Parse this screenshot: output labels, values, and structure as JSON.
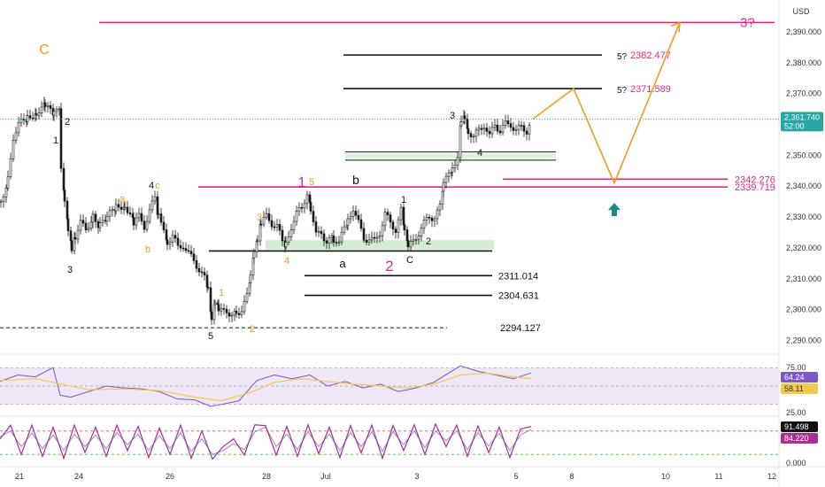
{
  "chart_data": [
    {
      "type": "candlestick",
      "title": "",
      "currency": "USD",
      "ylim": [
        2287,
        2398
      ],
      "y_ticks": [
        2290,
        2300,
        2310,
        2320,
        2330,
        2340,
        2350,
        2360,
        2370,
        2380,
        2390
      ],
      "y_tick_labels": [
        "2,290.000",
        "2,300.000",
        "2,310.000",
        "2,320.000",
        "2,330.000",
        "2,340.000",
        "2,350.000",
        "2,360.000",
        "2,370.000",
        "2,380.000",
        "2,390.000"
      ],
      "x_tick_labels": [
        "21",
        "24",
        "26",
        "28",
        "Jul",
        "3",
        "5",
        "8",
        "10",
        "11",
        "12"
      ],
      "last_price": 2361.74,
      "last_price_label": "2,361.740",
      "countdown_label": "52:00",
      "price_path": [
        [
          0,
          2335
        ],
        [
          8,
          2342
        ],
        [
          14,
          2356
        ],
        [
          20,
          2360
        ],
        [
          30,
          2362
        ],
        [
          40,
          2364
        ],
        [
          50,
          2366
        ],
        [
          60,
          2363
        ],
        [
          66,
          2366
        ],
        [
          68,
          2345
        ],
        [
          72,
          2335
        ],
        [
          76,
          2326
        ],
        [
          80,
          2320
        ],
        [
          84,
          2324
        ],
        [
          90,
          2328
        ],
        [
          96,
          2326
        ],
        [
          104,
          2330
        ],
        [
          112,
          2327
        ],
        [
          120,
          2330
        ],
        [
          130,
          2333
        ],
        [
          140,
          2334
        ],
        [
          146,
          2331
        ],
        [
          150,
          2328
        ],
        [
          156,
          2330
        ],
        [
          162,
          2327
        ],
        [
          168,
          2332
        ],
        [
          174,
          2336
        ],
        [
          178,
          2330
        ],
        [
          184,
          2327
        ],
        [
          188,
          2322
        ],
        [
          194,
          2324
        ],
        [
          200,
          2320
        ],
        [
          206,
          2321
        ],
        [
          212,
          2318
        ],
        [
          218,
          2316
        ],
        [
          224,
          2313
        ],
        [
          230,
          2310
        ],
        [
          234,
          2306
        ],
        [
          238,
          2296
        ],
        [
          242,
          2302
        ],
        [
          246,
          2300
        ],
        [
          252,
          2299
        ],
        [
          258,
          2299
        ],
        [
          266,
          2299
        ],
        [
          272,
          2300
        ],
        [
          278,
          2304
        ],
        [
          282,
          2310
        ],
        [
          286,
          2318
        ],
        [
          290,
          2322
        ],
        [
          294,
          2328
        ],
        [
          300,
          2330
        ],
        [
          306,
          2328
        ],
        [
          312,
          2327
        ],
        [
          318,
          2322
        ],
        [
          322,
          2321
        ],
        [
          328,
          2327
        ],
        [
          334,
          2331
        ],
        [
          340,
          2333
        ],
        [
          346,
          2338
        ],
        [
          350,
          2333
        ],
        [
          356,
          2324
        ],
        [
          362,
          2325
        ],
        [
          368,
          2322
        ],
        [
          376,
          2323
        ],
        [
          382,
          2321
        ],
        [
          388,
          2327
        ],
        [
          392,
          2329
        ],
        [
          398,
          2333
        ],
        [
          404,
          2328
        ],
        [
          410,
          2323
        ],
        [
          416,
          2323
        ],
        [
          422,
          2322
        ],
        [
          428,
          2325
        ],
        [
          434,
          2331
        ],
        [
          440,
          2328
        ],
        [
          446,
          2326
        ],
        [
          452,
          2332
        ],
        [
          456,
          2325
        ],
        [
          460,
          2320
        ],
        [
          466,
          2322
        ],
        [
          472,
          2325
        ],
        [
          478,
          2328
        ],
        [
          484,
          2330
        ],
        [
          490,
          2330
        ],
        [
          496,
          2333
        ],
        [
          500,
          2340
        ],
        [
          506,
          2345
        ],
        [
          510,
          2346
        ],
        [
          516,
          2350
        ],
        [
          520,
          2362
        ],
        [
          524,
          2363
        ],
        [
          528,
          2358
        ],
        [
          534,
          2356
        ],
        [
          540,
          2358
        ],
        [
          546,
          2360
        ],
        [
          552,
          2356
        ],
        [
          558,
          2360
        ],
        [
          564,
          2358
        ],
        [
          570,
          2360
        ],
        [
          576,
          2360
        ],
        [
          582,
          2358
        ],
        [
          588,
          2359
        ],
        [
          594,
          2358
        ],
        [
          600,
          2361.74
        ]
      ],
      "levels": [
        {
          "value": 2393.0,
          "color": "#e0297a",
          "label": "3?"
        },
        {
          "value": 2382.477,
          "color": "#111111",
          "label": "5?",
          "value_label": "2382.477"
        },
        {
          "value": 2371.589,
          "color": "#111111",
          "label": "5?",
          "value_label": "2371.589"
        },
        {
          "value": 2342.276,
          "color": "#e0297a",
          "value_label": "2342.276"
        },
        {
          "value": 2339.719,
          "color": "#e0297a",
          "value_label": "2339.719"
        },
        {
          "value": 2319.0,
          "color": "#111111"
        },
        {
          "value": 2311.014,
          "color": "#111111",
          "value_label": "2311.014"
        },
        {
          "value": 2304.631,
          "color": "#111111",
          "value_label": "2304.631"
        },
        {
          "value": 2294.127,
          "color": "#111111",
          "style": "dashed",
          "value_label": "2294.127"
        }
      ],
      "zones": [
        {
          "from": 2319.5,
          "to": 2322.5,
          "color": "#c8e8c8"
        },
        {
          "from": 2349.0,
          "to": 2350.5,
          "color": "#d6ecd6"
        }
      ],
      "projection_path": [
        {
          "x": "now",
          "y": 2361.74
        },
        {
          "y": 2371.589
        },
        {
          "y": 2341.0
        },
        {
          "y": 2393.0
        }
      ],
      "wave_labels": [
        {
          "text": "C",
          "color": "#f29a1c"
        },
        {
          "text": "2",
          "color": "#111111"
        },
        {
          "text": "1",
          "color": "#111111"
        },
        {
          "text": "3",
          "color": "#111111"
        },
        {
          "text": "a",
          "color": "#f29a1c"
        },
        {
          "text": "b",
          "color": "#f29a1c"
        },
        {
          "text": "4",
          "color": "#111111"
        },
        {
          "text": "c",
          "color": "#f29a1c"
        },
        {
          "text": "1",
          "color": "#e0297a"
        },
        {
          "text": "5",
          "color": "#f29a1c"
        },
        {
          "text": "3",
          "color": "#f29a1c"
        },
        {
          "text": "4",
          "color": "#f29a1c"
        },
        {
          "text": "1",
          "color": "#f29a1c"
        },
        {
          "text": "2",
          "color": "#f29a1c"
        },
        {
          "text": "5",
          "color": "#111111"
        },
        {
          "text": "b",
          "color": "#111111"
        },
        {
          "text": "a",
          "color": "#111111"
        },
        {
          "text": "2",
          "color": "#e0297a"
        },
        {
          "text": "1",
          "color": "#111111"
        },
        {
          "text": "2",
          "color": "#111111"
        },
        {
          "text": "C",
          "color": "#111111"
        },
        {
          "text": "3",
          "color": "#111111"
        },
        {
          "text": "4",
          "color": "#111111"
        }
      ]
    },
    {
      "type": "line",
      "indicator": "RSI",
      "ylim": [
        25,
        75
      ],
      "y_tick_labels": [
        "75.00",
        "25.00"
      ],
      "band": [
        30,
        70
      ],
      "values_labels": [
        "64.24",
        "58.11"
      ],
      "rsi": [
        [
          0,
          55
        ],
        [
          20,
          62
        ],
        [
          40,
          60
        ],
        [
          60,
          70
        ],
        [
          68,
          40
        ],
        [
          80,
          38
        ],
        [
          100,
          44
        ],
        [
          120,
          50
        ],
        [
          140,
          48
        ],
        [
          160,
          47
        ],
        [
          180,
          44
        ],
        [
          200,
          36
        ],
        [
          220,
          35
        ],
        [
          238,
          28
        ],
        [
          250,
          30
        ],
        [
          270,
          34
        ],
        [
          290,
          56
        ],
        [
          310,
          62
        ],
        [
          330,
          58
        ],
        [
          350,
          62
        ],
        [
          370,
          50
        ],
        [
          390,
          55
        ],
        [
          410,
          48
        ],
        [
          430,
          52
        ],
        [
          450,
          44
        ],
        [
          470,
          48
        ],
        [
          490,
          54
        ],
        [
          500,
          60
        ],
        [
          520,
          72
        ],
        [
          540,
          66
        ],
        [
          560,
          62
        ],
        [
          580,
          58
        ],
        [
          600,
          64.24
        ]
      ],
      "ma": [
        [
          0,
          56
        ],
        [
          40,
          58
        ],
        [
          70,
          52
        ],
        [
          100,
          46
        ],
        [
          140,
          47
        ],
        [
          180,
          45
        ],
        [
          220,
          38
        ],
        [
          250,
          34
        ],
        [
          280,
          42
        ],
        [
          310,
          54
        ],
        [
          340,
          58
        ],
        [
          370,
          55
        ],
        [
          400,
          52
        ],
        [
          430,
          50
        ],
        [
          460,
          48
        ],
        [
          490,
          52
        ],
        [
          520,
          62
        ],
        [
          550,
          64
        ],
        [
          580,
          60
        ],
        [
          600,
          58.11
        ]
      ]
    },
    {
      "type": "line",
      "indicator": "Stochastic",
      "y_tick_labels": [
        "0.000"
      ],
      "values_labels": [
        "91.498",
        "84.220"
      ],
      "k": [
        [
          0,
          60
        ],
        [
          12,
          95
        ],
        [
          24,
          20
        ],
        [
          36,
          95
        ],
        [
          48,
          15
        ],
        [
          60,
          90
        ],
        [
          72,
          10
        ],
        [
          84,
          95
        ],
        [
          96,
          25
        ],
        [
          108,
          90
        ],
        [
          120,
          15
        ],
        [
          132,
          95
        ],
        [
          144,
          30
        ],
        [
          156,
          92
        ],
        [
          168,
          12
        ],
        [
          180,
          88
        ],
        [
          192,
          20
        ],
        [
          204,
          95
        ],
        [
          216,
          10
        ],
        [
          228,
          80
        ],
        [
          240,
          8
        ],
        [
          252,
          40
        ],
        [
          264,
          60
        ],
        [
          276,
          18
        ],
        [
          288,
          96
        ],
        [
          300,
          94
        ],
        [
          312,
          18
        ],
        [
          324,
          92
        ],
        [
          336,
          15
        ],
        [
          348,
          96
        ],
        [
          360,
          22
        ],
        [
          372,
          90
        ],
        [
          384,
          12
        ],
        [
          396,
          94
        ],
        [
          408,
          24
        ],
        [
          420,
          95
        ],
        [
          432,
          10
        ],
        [
          444,
          94
        ],
        [
          456,
          30
        ],
        [
          468,
          96
        ],
        [
          480,
          20
        ],
        [
          492,
          98
        ],
        [
          504,
          40
        ],
        [
          516,
          95
        ],
        [
          528,
          15
        ],
        [
          540,
          93
        ],
        [
          552,
          25
        ],
        [
          564,
          90
        ],
        [
          576,
          12
        ],
        [
          588,
          85
        ],
        [
          600,
          91.498
        ]
      ],
      "d": [
        [
          0,
          65
        ],
        [
          12,
          80
        ],
        [
          24,
          40
        ],
        [
          36,
          75
        ],
        [
          48,
          35
        ],
        [
          60,
          70
        ],
        [
          72,
          30
        ],
        [
          84,
          72
        ],
        [
          96,
          40
        ],
        [
          108,
          70
        ],
        [
          120,
          35
        ],
        [
          132,
          76
        ],
        [
          144,
          45
        ],
        [
          156,
          72
        ],
        [
          168,
          30
        ],
        [
          180,
          68
        ],
        [
          192,
          35
        ],
        [
          204,
          75
        ],
        [
          216,
          28
        ],
        [
          228,
          60
        ],
        [
          240,
          20
        ],
        [
          252,
          30
        ],
        [
          264,
          48
        ],
        [
          276,
          32
        ],
        [
          288,
          78
        ],
        [
          300,
          90
        ],
        [
          312,
          40
        ],
        [
          324,
          72
        ],
        [
          336,
          32
        ],
        [
          348,
          78
        ],
        [
          360,
          40
        ],
        [
          372,
          72
        ],
        [
          384,
          30
        ],
        [
          396,
          76
        ],
        [
          408,
          40
        ],
        [
          420,
          78
        ],
        [
          432,
          28
        ],
        [
          444,
          78
        ],
        [
          456,
          45
        ],
        [
          468,
          80
        ],
        [
          480,
          38
        ],
        [
          492,
          80
        ],
        [
          504,
          55
        ],
        [
          516,
          80
        ],
        [
          528,
          32
        ],
        [
          540,
          76
        ],
        [
          552,
          42
        ],
        [
          564,
          74
        ],
        [
          576,
          30
        ],
        [
          588,
          70
        ],
        [
          600,
          84.22
        ]
      ],
      "guides": [
        80,
        20
      ]
    }
  ],
  "colors": {
    "magenta": "#e0297a",
    "orange": "#f29a1c",
    "teal": "#1b8c8c",
    "rsi_line": "#7e57c2",
    "rsi_ma": "#f2c94c",
    "stoch_k": "#ad2c91",
    "stoch_d": "#8a8ad8"
  },
  "icons": {
    "up_arrow": "teal-up-arrow-icon"
  }
}
